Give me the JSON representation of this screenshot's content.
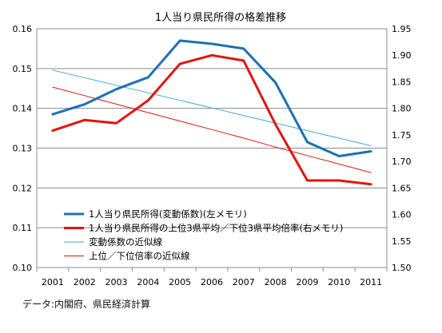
{
  "chart_data": {
    "type": "line",
    "title": "1人当り県民所得の格差推移",
    "x": [
      "2001",
      "2002",
      "2003",
      "2004",
      "2005",
      "2006",
      "2007",
      "2008",
      "2009",
      "2010",
      "2011"
    ],
    "left_axis": {
      "ylim": [
        0.1,
        0.16
      ],
      "ticks": [
        "0.10",
        "0.11",
        "0.12",
        "0.13",
        "0.14",
        "0.15",
        "0.16"
      ]
    },
    "right_axis": {
      "ylim": [
        1.5,
        1.95
      ],
      "ticks": [
        "1.50",
        "1.55",
        "1.60",
        "1.65",
        "1.70",
        "1.75",
        "1.80",
        "1.85",
        "1.90",
        "1.95"
      ]
    },
    "grid": true,
    "legend_position": "lower-left inside plot",
    "series": [
      {
        "name": "1人当り県民所得(変動係数)(左メモリ)",
        "axis": "left",
        "color": "#1f6fb5",
        "width": 3,
        "values": [
          0.1385,
          0.141,
          0.1448,
          0.1478,
          0.157,
          0.1562,
          0.155,
          0.1465,
          0.1315,
          0.128,
          0.1292
        ]
      },
      {
        "name": "1人当り県民所得の上位3県平均／下位3県平均倍率(右メモリ)",
        "axis": "right",
        "color": "#e3140d",
        "width": 3,
        "values": [
          1.758,
          1.778,
          1.772,
          1.815,
          1.884,
          1.9,
          1.89,
          1.77,
          1.664,
          1.664,
          1.657
        ]
      },
      {
        "name": "変動係数の近似線",
        "axis": "left",
        "color": "#3aaad4",
        "width": 1,
        "values": [
          0.1496,
          0.1477,
          0.1458,
          0.1439,
          0.142,
          0.1401,
          0.1382,
          0.1363,
          0.1344,
          0.1325,
          0.1306
        ]
      },
      {
        "name": "上位／下位倍率の近似線",
        "axis": "right",
        "color": "#e3140d",
        "width": 1,
        "values": [
          1.84,
          1.824,
          1.808,
          1.792,
          1.776,
          1.76,
          1.744,
          1.727,
          1.711,
          1.695,
          1.679
        ]
      }
    ]
  },
  "source_note": "データ:内閣府、県民経済計算"
}
